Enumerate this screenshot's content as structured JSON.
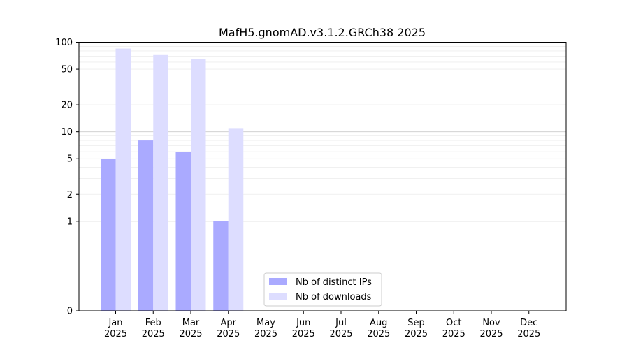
{
  "chart_data": {
    "type": "bar",
    "title": "MafH5.gnomAD.v3.1.2.GRCh38 2025",
    "xlabel": "",
    "ylabel": "",
    "y_scale": "symlog",
    "ylim": [
      0,
      100
    ],
    "y_ticks": [
      {
        "value": 0,
        "label": "0"
      },
      {
        "value": 1,
        "label": "1"
      },
      {
        "value": 2,
        "label": "2"
      },
      {
        "value": 5,
        "label": "5"
      },
      {
        "value": 10,
        "label": "10"
      },
      {
        "value": 20,
        "label": "20"
      },
      {
        "value": 50,
        "label": "50"
      },
      {
        "value": 100,
        "label": "100"
      }
    ],
    "grid": true,
    "legend_position": "bottom-center",
    "categories": [
      {
        "month": "Jan",
        "year": "2025"
      },
      {
        "month": "Feb",
        "year": "2025"
      },
      {
        "month": "Mar",
        "year": "2025"
      },
      {
        "month": "Apr",
        "year": "2025"
      },
      {
        "month": "May",
        "year": "2025"
      },
      {
        "month": "Jun",
        "year": "2025"
      },
      {
        "month": "Jul",
        "year": "2025"
      },
      {
        "month": "Aug",
        "year": "2025"
      },
      {
        "month": "Sep",
        "year": "2025"
      },
      {
        "month": "Oct",
        "year": "2025"
      },
      {
        "month": "Nov",
        "year": "2025"
      },
      {
        "month": "Dec",
        "year": "2025"
      }
    ],
    "series": [
      {
        "name": "Nb of distinct IPs",
        "color": "#aaaaff",
        "values": [
          5,
          8,
          6,
          1,
          0,
          0,
          0,
          0,
          0,
          0,
          0,
          0
        ]
      },
      {
        "name": "Nb of downloads",
        "color": "#ddddff",
        "values": [
          85,
          72,
          65,
          11,
          0,
          0,
          0,
          0,
          0,
          0,
          0,
          0
        ]
      }
    ]
  }
}
